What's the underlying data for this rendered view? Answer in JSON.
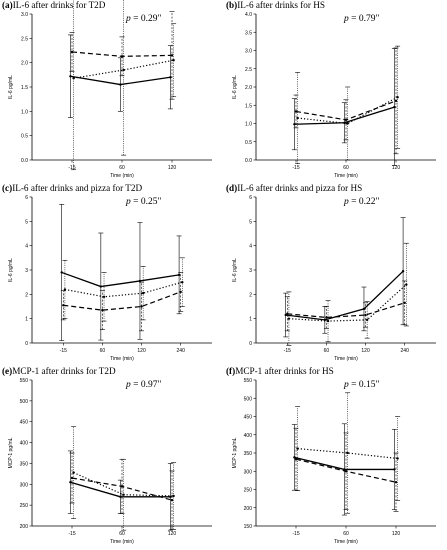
{
  "chart_data": [
    {
      "type": "line",
      "letter": "(a)",
      "title": "IL-6 after drinks for T2D",
      "p_label": "p",
      "p_value": "= 0.29\"",
      "ylabel": "IL-6 pg/mL",
      "xlabel": "Time (min)",
      "ylim": [
        0,
        3
      ],
      "ytick_step": 0.5,
      "y_decimals": 1,
      "categories": [
        "-15",
        "60",
        "120"
      ],
      "series": [
        {
          "style": "solid",
          "values": [
            1.72,
            1.55,
            1.7
          ],
          "err": [
            0.85,
            0.55,
            0.65
          ]
        },
        {
          "style": "dash",
          "values": [
            2.22,
            2.13,
            2.15
          ],
          "err": [
            0.4,
            0.4,
            0.9
          ]
        },
        {
          "style": "dot",
          "values": [
            1.68,
            1.85,
            2.05
          ],
          "err": [
            1.88,
            1.75,
            0.75
          ]
        }
      ]
    },
    {
      "type": "line",
      "letter": "(b)",
      "title": "IL-6 after drinks for HS",
      "p_label": "p",
      "p_value": "= 0.79\"",
      "ylabel": "IL-6 pg/mL",
      "xlabel": "Time (min)",
      "ylim": [
        0,
        4
      ],
      "ytick_step": 0.5,
      "y_decimals": 1,
      "categories": [
        "-15",
        "60",
        "120"
      ],
      "series": [
        {
          "style": "solid",
          "values": [
            0.98,
            1.02,
            1.45
          ],
          "err": [
            0.7,
            0.55,
            1.6
          ]
        },
        {
          "style": "dash",
          "values": [
            1.33,
            1.1,
            1.62
          ],
          "err": [
            0.45,
            0.55,
            1.45
          ]
        },
        {
          "style": "dot",
          "values": [
            1.15,
            1.0,
            1.72
          ],
          "err": [
            1.25,
            1.0,
            1.4
          ]
        }
      ]
    },
    {
      "type": "line",
      "letter": "(c)",
      "title": "IL-6 after drinks and pizza for T2D",
      "p_label": "p",
      "p_value": "= 0.25\"",
      "ylabel": "IL-6 pg/mL",
      "xlabel": "Time (min)",
      "ylim": [
        0,
        6
      ],
      "ytick_step": 1,
      "y_decimals": 0,
      "categories": [
        "-15",
        "60",
        "120",
        "240"
      ],
      "series": [
        {
          "style": "solid",
          "values": [
            2.9,
            2.32,
            2.55,
            2.8
          ],
          "err": [
            2.8,
            2.2,
            2.4,
            1.6
          ]
        },
        {
          "style": "dash",
          "values": [
            1.55,
            1.35,
            1.5,
            2.1
          ],
          "err": [
            0.6,
            0.8,
            1.0,
            0.8
          ]
        },
        {
          "style": "dot",
          "values": [
            2.2,
            1.9,
            2.05,
            2.5
          ],
          "err": [
            1.2,
            1.0,
            1.1,
            1.0
          ]
        }
      ]
    },
    {
      "type": "line",
      "letter": "(d)",
      "title": "IL-6 after drinks and pizza for HS",
      "p_label": "p",
      "p_value": "= 0.22\"",
      "ylabel": "IL-6 pg/mL",
      "xlabel": "Time (min)",
      "ylim": [
        0,
        6
      ],
      "ytick_step": 1,
      "y_decimals": 0,
      "categories": [
        "-15",
        "60",
        "120",
        "240"
      ],
      "series": [
        {
          "style": "solid",
          "values": [
            1.15,
            0.95,
            1.4,
            2.95
          ],
          "err": [
            0.9,
            0.55,
            0.9,
            2.2
          ]
        },
        {
          "style": "dash",
          "values": [
            1.2,
            1.05,
            1.15,
            1.65
          ],
          "err": [
            0.7,
            0.45,
            0.5,
            0.9
          ]
        },
        {
          "style": "dot",
          "values": [
            1.0,
            0.9,
            0.95,
            2.4
          ],
          "err": [
            1.1,
            0.85,
            0.75,
            1.7
          ]
        }
      ]
    },
    {
      "type": "line",
      "letter": "(e)",
      "title": "MCP-1 after drinks for T2D",
      "p_label": "p",
      "p_value": "= 0.97\"",
      "ylabel": "MCP-1 pg/mL",
      "xlabel": "Time (min)",
      "ylim": [
        200,
        550
      ],
      "ytick_step": 50,
      "y_decimals": 0,
      "categories": [
        "-15",
        "60",
        "120"
      ],
      "series": [
        {
          "style": "solid",
          "values": [
            305,
            270,
            270
          ],
          "err": [
            75,
            40,
            80
          ]
        },
        {
          "style": "dash",
          "values": [
            315,
            295,
            262
          ],
          "err": [
            60,
            65,
            70
          ]
        },
        {
          "style": "dot",
          "values": [
            328,
            275,
            272
          ],
          "err": [
            110,
            85,
            80
          ]
        }
      ]
    },
    {
      "type": "line",
      "letter": "(f)",
      "title": "MCP-1 after drinks for HS",
      "p_label": "p",
      "p_value": "= 0.15\"",
      "ylabel": "MCP-1 pg/mL",
      "xlabel": "Time (min)",
      "ylim": [
        150,
        550
      ],
      "ytick_step": 50,
      "y_decimals": 0,
      "categories": [
        "-15",
        "60",
        "120"
      ],
      "series": [
        {
          "style": "solid",
          "values": [
            338,
            305,
            305
          ],
          "err": [
            90,
            125,
            110
          ]
        },
        {
          "style": "dash",
          "values": [
            333,
            300,
            270
          ],
          "err": [
            85,
            105,
            80
          ]
        },
        {
          "style": "dot",
          "values": [
            362,
            350,
            335
          ],
          "err": [
            115,
            165,
            115
          ]
        }
      ]
    }
  ]
}
